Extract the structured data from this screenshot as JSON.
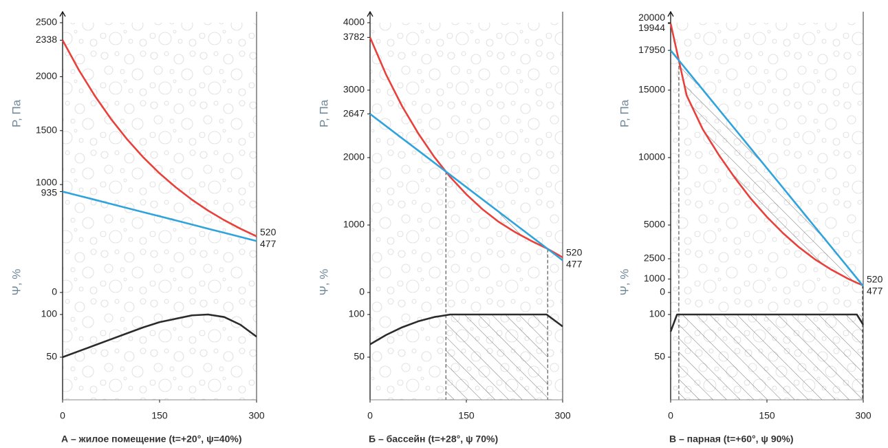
{
  "chart_data": [
    {
      "type": "line",
      "title": "А – жилое помещение (t=+20°, ψ=40%)",
      "ylabel": "P, Па",
      "y2label": "Ψ, %",
      "x": [
        0,
        25,
        50,
        75,
        100,
        125,
        150,
        175,
        200,
        225,
        250,
        275,
        300
      ],
      "xlim": [
        0,
        300
      ],
      "xticks": [
        0,
        150,
        300
      ],
      "ylim": [
        0,
        2500
      ],
      "yticks": [
        0,
        935,
        1000,
        1500,
        2000,
        2338,
        2500
      ],
      "y2lim": [
        0,
        100
      ],
      "y2ticks": [
        50,
        100
      ],
      "series": [
        {
          "color": "#e8413b",
          "values": [
            2338,
            2063,
            1821,
            1607,
            1418,
            1251,
            1104,
            975,
            860,
            759,
            670,
            591,
            520
          ]
        },
        {
          "color": "#2fa3dc",
          "values": [
            935,
            897,
            859,
            820,
            782,
            744,
            706,
            668,
            630,
            591,
            553,
            515,
            477
          ]
        },
        {
          "color": "#2b2b2b",
          "axis": "y2",
          "values": [
            50,
            57,
            64,
            71,
            78,
            85,
            91,
            95,
            99,
            100,
            97,
            88,
            74
          ]
        }
      ]
    },
    {
      "type": "line",
      "title": "Б – бассейн (t=+28°, ψ 70%)",
      "ylabel": "P, Па",
      "y2label": "Ψ, %",
      "x": [
        0,
        25,
        50,
        75,
        100,
        125,
        150,
        175,
        200,
        225,
        250,
        275,
        300
      ],
      "xlim": [
        0,
        300
      ],
      "xticks": [
        0,
        150,
        300
      ],
      "ylim": [
        0,
        4000
      ],
      "yticks": [
        0,
        1000,
        2000,
        2647,
        3000,
        3782,
        4000
      ],
      "y2lim": [
        0,
        100
      ],
      "y2ticks": [
        50,
        100
      ],
      "series": [
        {
          "color": "#e8413b",
          "values": [
            3782,
            3230,
            2760,
            2360,
            2010,
            1710,
            1455,
            1235,
            1050,
            900,
            770,
            655,
            520
          ]
        },
        {
          "color": "#2fa3dc",
          "values": [
            2647,
            2466,
            2285,
            2105,
            1924,
            1743,
            1562,
            1381,
            1200,
            1019,
            839,
            658,
            477
          ]
        },
        {
          "color": "#2b2b2b",
          "axis": "y2",
          "values": [
            65,
            76,
            85,
            92,
            97,
            100,
            100,
            100,
            100,
            100,
            100,
            100,
            86
          ]
        }
      ]
    },
    {
      "type": "line",
      "title": "В – парная (t=+60°, ψ 90%)",
      "ylabel": "P, Па",
      "y2label": "Ψ, %",
      "x": [
        0,
        10,
        25,
        50,
        75,
        100,
        125,
        150,
        175,
        200,
        225,
        250,
        275,
        290,
        300
      ],
      "xlim": [
        0,
        300
      ],
      "xticks": [
        0,
        150,
        300
      ],
      "ylim": [
        0,
        20000
      ],
      "yticks": [
        0,
        1000,
        2500,
        5000,
        10000,
        15000,
        17950,
        19944,
        20000
      ],
      "y2lim": [
        0,
        100
      ],
      "y2ticks": [
        50,
        100
      ],
      "series": [
        {
          "color": "#e8413b",
          "values": [
            19944,
            17800,
            14600,
            12100,
            10200,
            8500,
            6950,
            5600,
            4400,
            3350,
            2450,
            1700,
            1050,
            720,
            520
          ]
        },
        {
          "color": "#2fa3dc",
          "values": [
            17950,
            17368,
            16494,
            15038,
            13582,
            12126,
            10670,
            9214,
            7758,
            6301,
            4845,
            3389,
            1933,
            1059,
            477
          ]
        },
        {
          "color": "#2b2b2b",
          "axis": "y2",
          "values": [
            80,
            100,
            100,
            100,
            100,
            100,
            100,
            100,
            100,
            100,
            100,
            100,
            100,
            100,
            88
          ]
        }
      ]
    }
  ]
}
